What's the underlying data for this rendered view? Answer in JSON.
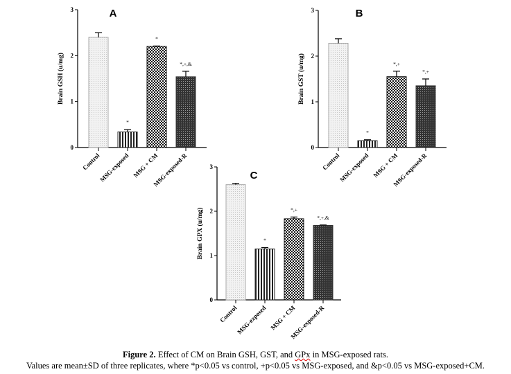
{
  "chart_data": [
    {
      "type": "bar",
      "title": "A",
      "ylabel": "Brain GSH (u/mg)",
      "xlabel": "",
      "ylim": [
        0,
        3
      ],
      "yticks": [
        0,
        1,
        2,
        3
      ],
      "categories": [
        "Control",
        "MSG-exposed",
        "MSG + CM",
        "MSG-exposed-R"
      ],
      "values": [
        2.4,
        0.34,
        2.2,
        1.54
      ],
      "errors": [
        0.1,
        0.05,
        0.01,
        0.12
      ],
      "annotations": [
        "",
        "*",
        "*",
        "*,+,&"
      ]
    },
    {
      "type": "bar",
      "title": "B",
      "ylabel": "Brain GST (u/mg)",
      "xlabel": "",
      "ylim": [
        0,
        3
      ],
      "yticks": [
        0,
        1,
        2,
        3
      ],
      "categories": [
        "Control",
        "MSG-exposed",
        "MSG + CM",
        "MSG-exposed-R"
      ],
      "values": [
        2.28,
        0.15,
        1.55,
        1.35
      ],
      "errors": [
        0.1,
        0.02,
        0.12,
        0.15
      ],
      "annotations": [
        "",
        "*",
        "*,+",
        "*,+"
      ]
    },
    {
      "type": "bar",
      "title": "C",
      "ylabel": "Brain GPX (u/mg)",
      "xlabel": "",
      "ylim": [
        0,
        3
      ],
      "yticks": [
        0,
        1,
        2,
        3
      ],
      "categories": [
        "Control",
        "MSG-exposed",
        "MSG + CM",
        "MSG-exposed-R"
      ],
      "values": [
        2.6,
        1.15,
        1.83,
        1.68
      ],
      "errors": [
        0.03,
        0.03,
        0.04,
        0.01
      ],
      "annotations": [
        "",
        "*",
        "*,+",
        "*,+,&"
      ]
    }
  ],
  "caption": {
    "figure_label": "Figure 2.",
    "title_pre": " Effect of CM on Brain GSH, GST, and ",
    "title_flagged": "GPx",
    "title_post": " in MSG-exposed rats.",
    "note": "Values are mean±SD of three replicates, where *p<0.05 vs control, +p<0.05 vs MSG-exposed, and &p<0.05 vs MSG-exposed+CM."
  }
}
